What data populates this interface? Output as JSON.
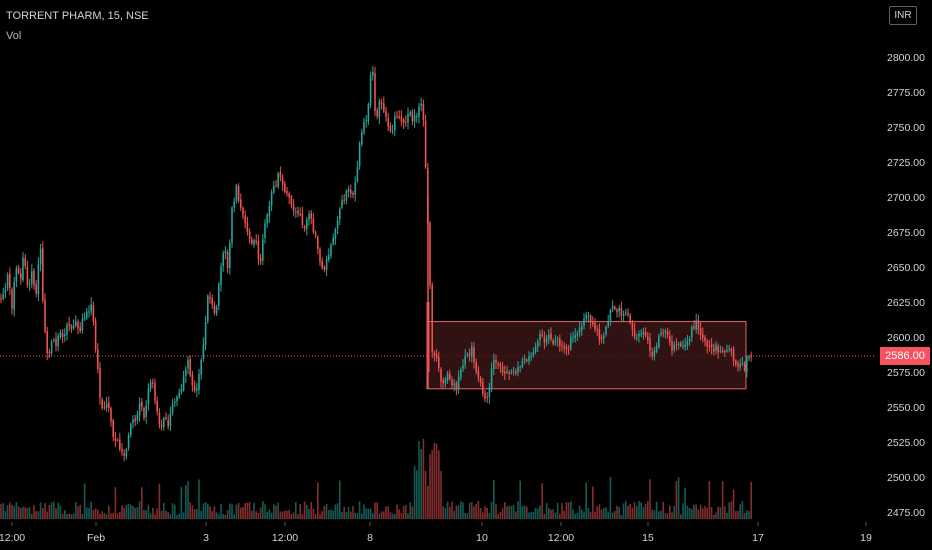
{
  "header": {
    "symbol_line": "TORRENT PHARM, 15, NSE",
    "volume_label": "Vol",
    "currency": "INR"
  },
  "colors": {
    "up": "#26a69a",
    "down": "#ef5350",
    "zone_fill": "#3a1516",
    "zone_border": "#e06666",
    "price_line": "#f7525f",
    "axis_text": "#d1d4dc"
  },
  "current_price_label": "2586.00",
  "chart_data": {
    "type": "candlestick",
    "title": "TORRENT PHARM, 15, NSE",
    "y_unit": "INR",
    "ylim": [
      2465,
      2818
    ],
    "y_ticks": [
      "2475.00",
      "2500.00",
      "2525.00",
      "2550.00",
      "2575.00",
      "2600.00",
      "2625.00",
      "2650.00",
      "2675.00",
      "2700.00",
      "2725.00",
      "2750.00",
      "2775.00",
      "2800.00"
    ],
    "x_ticks": [
      "12:00",
      "Feb",
      "3",
      "12:00",
      "8",
      "10",
      "12:00",
      "15",
      "17",
      "19"
    ],
    "current_price": 2586.0,
    "series_points": [
      {
        "t": 0,
        "p": 2625
      },
      {
        "t": 4,
        "p": 2630
      },
      {
        "t": 8,
        "p": 2645
      },
      {
        "t": 12,
        "p": 2622
      },
      {
        "t": 16,
        "p": 2650
      },
      {
        "t": 20,
        "p": 2640
      },
      {
        "t": 24,
        "p": 2660
      },
      {
        "t": 28,
        "p": 2635
      },
      {
        "t": 32,
        "p": 2645
      },
      {
        "t": 36,
        "p": 2628
      },
      {
        "t": 40,
        "p": 2672
      },
      {
        "t": 44,
        "p": 2608
      },
      {
        "t": 48,
        "p": 2583
      },
      {
        "t": 52,
        "p": 2600
      },
      {
        "t": 56,
        "p": 2593
      },
      {
        "t": 60,
        "p": 2605
      },
      {
        "t": 64,
        "p": 2598
      },
      {
        "t": 68,
        "p": 2610
      },
      {
        "t": 72,
        "p": 2602
      },
      {
        "t": 76,
        "p": 2612
      },
      {
        "t": 80,
        "p": 2605
      },
      {
        "t": 84,
        "p": 2615
      },
      {
        "t": 88,
        "p": 2620
      },
      {
        "t": 92,
        "p": 2622
      },
      {
        "t": 96,
        "p": 2590
      },
      {
        "t": 100,
        "p": 2558
      },
      {
        "t": 104,
        "p": 2548
      },
      {
        "t": 108,
        "p": 2553
      },
      {
        "t": 112,
        "p": 2533
      },
      {
        "t": 116,
        "p": 2526
      },
      {
        "t": 120,
        "p": 2520
      },
      {
        "t": 124,
        "p": 2512
      },
      {
        "t": 128,
        "p": 2525
      },
      {
        "t": 132,
        "p": 2545
      },
      {
        "t": 136,
        "p": 2537
      },
      {
        "t": 140,
        "p": 2552
      },
      {
        "t": 144,
        "p": 2545
      },
      {
        "t": 148,
        "p": 2560
      },
      {
        "t": 152,
        "p": 2570
      },
      {
        "t": 156,
        "p": 2552
      },
      {
        "t": 160,
        "p": 2533
      },
      {
        "t": 164,
        "p": 2545
      },
      {
        "t": 168,
        "p": 2535
      },
      {
        "t": 172,
        "p": 2550
      },
      {
        "t": 176,
        "p": 2556
      },
      {
        "t": 180,
        "p": 2560
      },
      {
        "t": 184,
        "p": 2570
      },
      {
        "t": 188,
        "p": 2582
      },
      {
        "t": 192,
        "p": 2565
      },
      {
        "t": 196,
        "p": 2562
      },
      {
        "t": 200,
        "p": 2576
      },
      {
        "t": 204,
        "p": 2600
      },
      {
        "t": 208,
        "p": 2630
      },
      {
        "t": 212,
        "p": 2622
      },
      {
        "t": 216,
        "p": 2618
      },
      {
        "t": 220,
        "p": 2645
      },
      {
        "t": 224,
        "p": 2665
      },
      {
        "t": 228,
        "p": 2650
      },
      {
        "t": 232,
        "p": 2690
      },
      {
        "t": 236,
        "p": 2708
      },
      {
        "t": 240,
        "p": 2695
      },
      {
        "t": 244,
        "p": 2685
      },
      {
        "t": 248,
        "p": 2675
      },
      {
        "t": 252,
        "p": 2664
      },
      {
        "t": 256,
        "p": 2670
      },
      {
        "t": 260,
        "p": 2650
      },
      {
        "t": 264,
        "p": 2675
      },
      {
        "t": 268,
        "p": 2692
      },
      {
        "t": 272,
        "p": 2703
      },
      {
        "t": 276,
        "p": 2710
      },
      {
        "t": 280,
        "p": 2718
      },
      {
        "t": 284,
        "p": 2705
      },
      {
        "t": 288,
        "p": 2700
      },
      {
        "t": 292,
        "p": 2690
      },
      {
        "t": 296,
        "p": 2692
      },
      {
        "t": 300,
        "p": 2685
      },
      {
        "t": 304,
        "p": 2678
      },
      {
        "t": 308,
        "p": 2690
      },
      {
        "t": 312,
        "p": 2680
      },
      {
        "t": 316,
        "p": 2670
      },
      {
        "t": 320,
        "p": 2655
      },
      {
        "t": 324,
        "p": 2645
      },
      {
        "t": 328,
        "p": 2660
      },
      {
        "t": 332,
        "p": 2665
      },
      {
        "t": 336,
        "p": 2678
      },
      {
        "t": 340,
        "p": 2690
      },
      {
        "t": 344,
        "p": 2700
      },
      {
        "t": 348,
        "p": 2705
      },
      {
        "t": 352,
        "p": 2700
      },
      {
        "t": 356,
        "p": 2712
      },
      {
        "t": 360,
        "p": 2740
      },
      {
        "t": 364,
        "p": 2752
      },
      {
        "t": 368,
        "p": 2760
      },
      {
        "t": 372,
        "p": 2800
      },
      {
        "t": 376,
        "p": 2748
      },
      {
        "t": 380,
        "p": 2772
      },
      {
        "t": 384,
        "p": 2758
      },
      {
        "t": 388,
        "p": 2752
      },
      {
        "t": 392,
        "p": 2748
      },
      {
        "t": 396,
        "p": 2760
      },
      {
        "t": 400,
        "p": 2755
      },
      {
        "t": 404,
        "p": 2750
      },
      {
        "t": 408,
        "p": 2762
      },
      {
        "t": 412,
        "p": 2755
      },
      {
        "t": 416,
        "p": 2758
      },
      {
        "t": 420,
        "p": 2770
      },
      {
        "t": 424,
        "p": 2752
      },
      {
        "t": 428,
        "p": 2680
      },
      {
        "t": 432,
        "p": 2590
      },
      {
        "t": 436,
        "p": 2585
      },
      {
        "t": 440,
        "p": 2572
      },
      {
        "t": 444,
        "p": 2566
      },
      {
        "t": 448,
        "p": 2572
      },
      {
        "t": 452,
        "p": 2566
      },
      {
        "t": 456,
        "p": 2562
      },
      {
        "t": 460,
        "p": 2575
      },
      {
        "t": 464,
        "p": 2583
      },
      {
        "t": 468,
        "p": 2586
      },
      {
        "t": 472,
        "p": 2592
      },
      {
        "t": 476,
        "p": 2576
      },
      {
        "t": 480,
        "p": 2572
      },
      {
        "t": 484,
        "p": 2555
      },
      {
        "t": 488,
        "p": 2560
      },
      {
        "t": 492,
        "p": 2580
      },
      {
        "t": 496,
        "p": 2584
      },
      {
        "t": 500,
        "p": 2578
      },
      {
        "t": 504,
        "p": 2575
      },
      {
        "t": 508,
        "p": 2578
      },
      {
        "t": 512,
        "p": 2573
      },
      {
        "t": 516,
        "p": 2575
      },
      {
        "t": 520,
        "p": 2580
      },
      {
        "t": 524,
        "p": 2588
      },
      {
        "t": 528,
        "p": 2582
      },
      {
        "t": 532,
        "p": 2590
      },
      {
        "t": 536,
        "p": 2595
      },
      {
        "t": 540,
        "p": 2600
      },
      {
        "t": 544,
        "p": 2598
      },
      {
        "t": 548,
        "p": 2602
      },
      {
        "t": 552,
        "p": 2594
      },
      {
        "t": 556,
        "p": 2598
      },
      {
        "t": 560,
        "p": 2595
      },
      {
        "t": 564,
        "p": 2590
      },
      {
        "t": 568,
        "p": 2592
      },
      {
        "t": 572,
        "p": 2600
      },
      {
        "t": 576,
        "p": 2604
      },
      {
        "t": 580,
        "p": 2608
      },
      {
        "t": 584,
        "p": 2610
      },
      {
        "t": 588,
        "p": 2618
      },
      {
        "t": 592,
        "p": 2610
      },
      {
        "t": 596,
        "p": 2605
      },
      {
        "t": 600,
        "p": 2600
      },
      {
        "t": 604,
        "p": 2602
      },
      {
        "t": 608,
        "p": 2612
      },
      {
        "t": 612,
        "p": 2622
      },
      {
        "t": 616,
        "p": 2620
      },
      {
        "t": 620,
        "p": 2618
      },
      {
        "t": 624,
        "p": 2615
      },
      {
        "t": 628,
        "p": 2616
      },
      {
        "t": 632,
        "p": 2608
      },
      {
        "t": 636,
        "p": 2600
      },
      {
        "t": 640,
        "p": 2605
      },
      {
        "t": 644,
        "p": 2600
      },
      {
        "t": 648,
        "p": 2598
      },
      {
        "t": 652,
        "p": 2585
      },
      {
        "t": 656,
        "p": 2592
      },
      {
        "t": 660,
        "p": 2600
      },
      {
        "t": 664,
        "p": 2605
      },
      {
        "t": 668,
        "p": 2598
      },
      {
        "t": 672,
        "p": 2590
      },
      {
        "t": 676,
        "p": 2593
      },
      {
        "t": 680,
        "p": 2596
      },
      {
        "t": 684,
        "p": 2590
      },
      {
        "t": 688,
        "p": 2595
      },
      {
        "t": 692,
        "p": 2605
      },
      {
        "t": 696,
        "p": 2610
      },
      {
        "t": 700,
        "p": 2604
      },
      {
        "t": 704,
        "p": 2598
      },
      {
        "t": 708,
        "p": 2594
      },
      {
        "t": 712,
        "p": 2590
      },
      {
        "t": 716,
        "p": 2595
      },
      {
        "t": 720,
        "p": 2588
      },
      {
        "t": 724,
        "p": 2592
      },
      {
        "t": 728,
        "p": 2590
      },
      {
        "t": 732,
        "p": 2588
      },
      {
        "t": 736,
        "p": 2580
      },
      {
        "t": 740,
        "p": 2583
      },
      {
        "t": 744,
        "p": 2578
      },
      {
        "t": 748,
        "p": 2584
      },
      {
        "t": 752,
        "p": 2586
      }
    ],
    "zone": {
      "price_top": 2611,
      "price_bottom": 2563,
      "t_start": 427,
      "t_end": 746
    }
  }
}
